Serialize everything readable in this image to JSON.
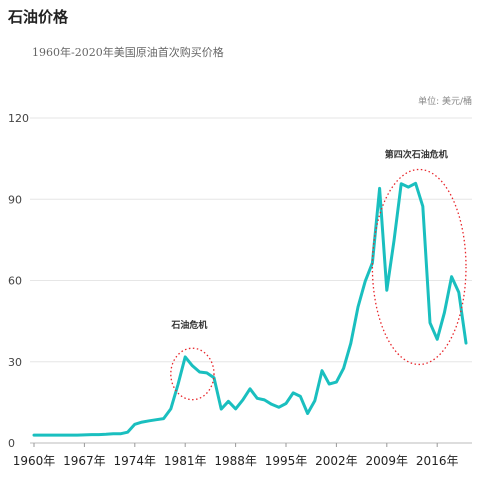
{
  "chart_data": {
    "type": "line",
    "title": "石油价格",
    "subtitle": "1960年-2020年美国原油首次购买价格",
    "unit_label": "单位: 美元/桶",
    "xlabel": "",
    "ylabel": "",
    "xlim": [
      1960,
      2020
    ],
    "ylim": [
      0,
      120
    ],
    "yticks": [
      0,
      30,
      60,
      90,
      120
    ],
    "xticks": [
      1960,
      1967,
      1974,
      1981,
      1988,
      1995,
      2002,
      2009,
      2016
    ],
    "xtick_labels": [
      "1960年",
      "1967年",
      "1974年",
      "1981年",
      "1988年",
      "1995年",
      "2002年",
      "2009年",
      "2016年"
    ],
    "grid": "horizontal",
    "line_color": "#1abfbf",
    "series": [
      {
        "name": "",
        "x": [
          1960,
          1961,
          1962,
          1963,
          1964,
          1965,
          1966,
          1967,
          1968,
          1969,
          1970,
          1971,
          1972,
          1973,
          1974,
          1975,
          1976,
          1977,
          1978,
          1979,
          1980,
          1981,
          1982,
          1983,
          1984,
          1985,
          1986,
          1987,
          1988,
          1989,
          1990,
          1991,
          1992,
          1993,
          1994,
          1995,
          1996,
          1997,
          1998,
          1999,
          2000,
          2001,
          2002,
          2003,
          2004,
          2005,
          2006,
          2007,
          2008,
          2009,
          2010,
          2011,
          2012,
          2013,
          2014,
          2015,
          2016,
          2017,
          2018,
          2019,
          2020
        ],
        "values": [
          2.9,
          2.9,
          2.9,
          2.9,
          2.9,
          2.9,
          2.9,
          3.0,
          3.1,
          3.1,
          3.2,
          3.4,
          3.4,
          4.0,
          6.9,
          7.7,
          8.2,
          8.6,
          9.0,
          12.6,
          21.6,
          31.8,
          28.5,
          26.2,
          25.9,
          24.1,
          12.5,
          15.4,
          12.6,
          15.9,
          20.0,
          16.5,
          15.9,
          14.3,
          13.2,
          14.6,
          18.5,
          17.2,
          10.9,
          15.6,
          26.7,
          21.8,
          22.5,
          27.6,
          36.8,
          50.2,
          59.7,
          66.5,
          94.0,
          56.4,
          74.7,
          95.7,
          94.5,
          95.9,
          87.4,
          44.4,
          38.3,
          48.1,
          61.4,
          55.6,
          36.9
        ]
      }
    ],
    "annotations": [
      {
        "label": "石油危机",
        "x_range": [
          1979,
          1985
        ]
      },
      {
        "label": "第四次石油危机",
        "x_range": [
          2007,
          2020
        ]
      }
    ]
  }
}
